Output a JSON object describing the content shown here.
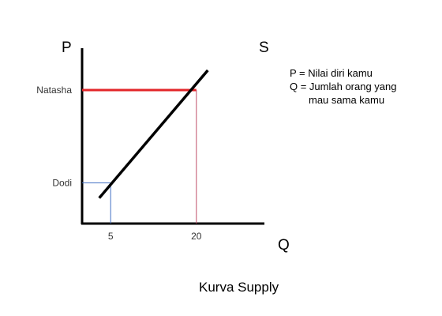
{
  "chart_data": {
    "type": "line",
    "title": "Kurva Supply",
    "ylabel": "P",
    "xlabel": "Q",
    "series": [
      {
        "name": "S",
        "x": [
          3,
          22
        ],
        "y": [
          2.2,
          13.2
        ]
      }
    ],
    "x_ticks": [
      {
        "value": 5,
        "label": "5"
      },
      {
        "value": 20,
        "label": "20"
      }
    ],
    "y_ticks": [
      {
        "value": 3.5,
        "label": "Dodi"
      },
      {
        "value": 11.5,
        "label": "Natasha"
      }
    ],
    "highlights": [
      {
        "name": "Dodi",
        "x": 5,
        "y": 3.5,
        "color": "#4472c4"
      },
      {
        "name": "Natasha",
        "x": 20,
        "y": 11.5,
        "color_horizontal": "#e3262a",
        "color_vertical": "#c0506a"
      }
    ],
    "annotations": [
      "P = Nilai diri kamu",
      "Q = Jumlah orang yang",
      "mau sama kamu"
    ],
    "xlim": [
      0,
      25
    ],
    "ylim": [
      0,
      14
    ],
    "grid": false,
    "legend": "right",
    "colors": {
      "curve": "#000000",
      "axes": "#000000"
    }
  }
}
